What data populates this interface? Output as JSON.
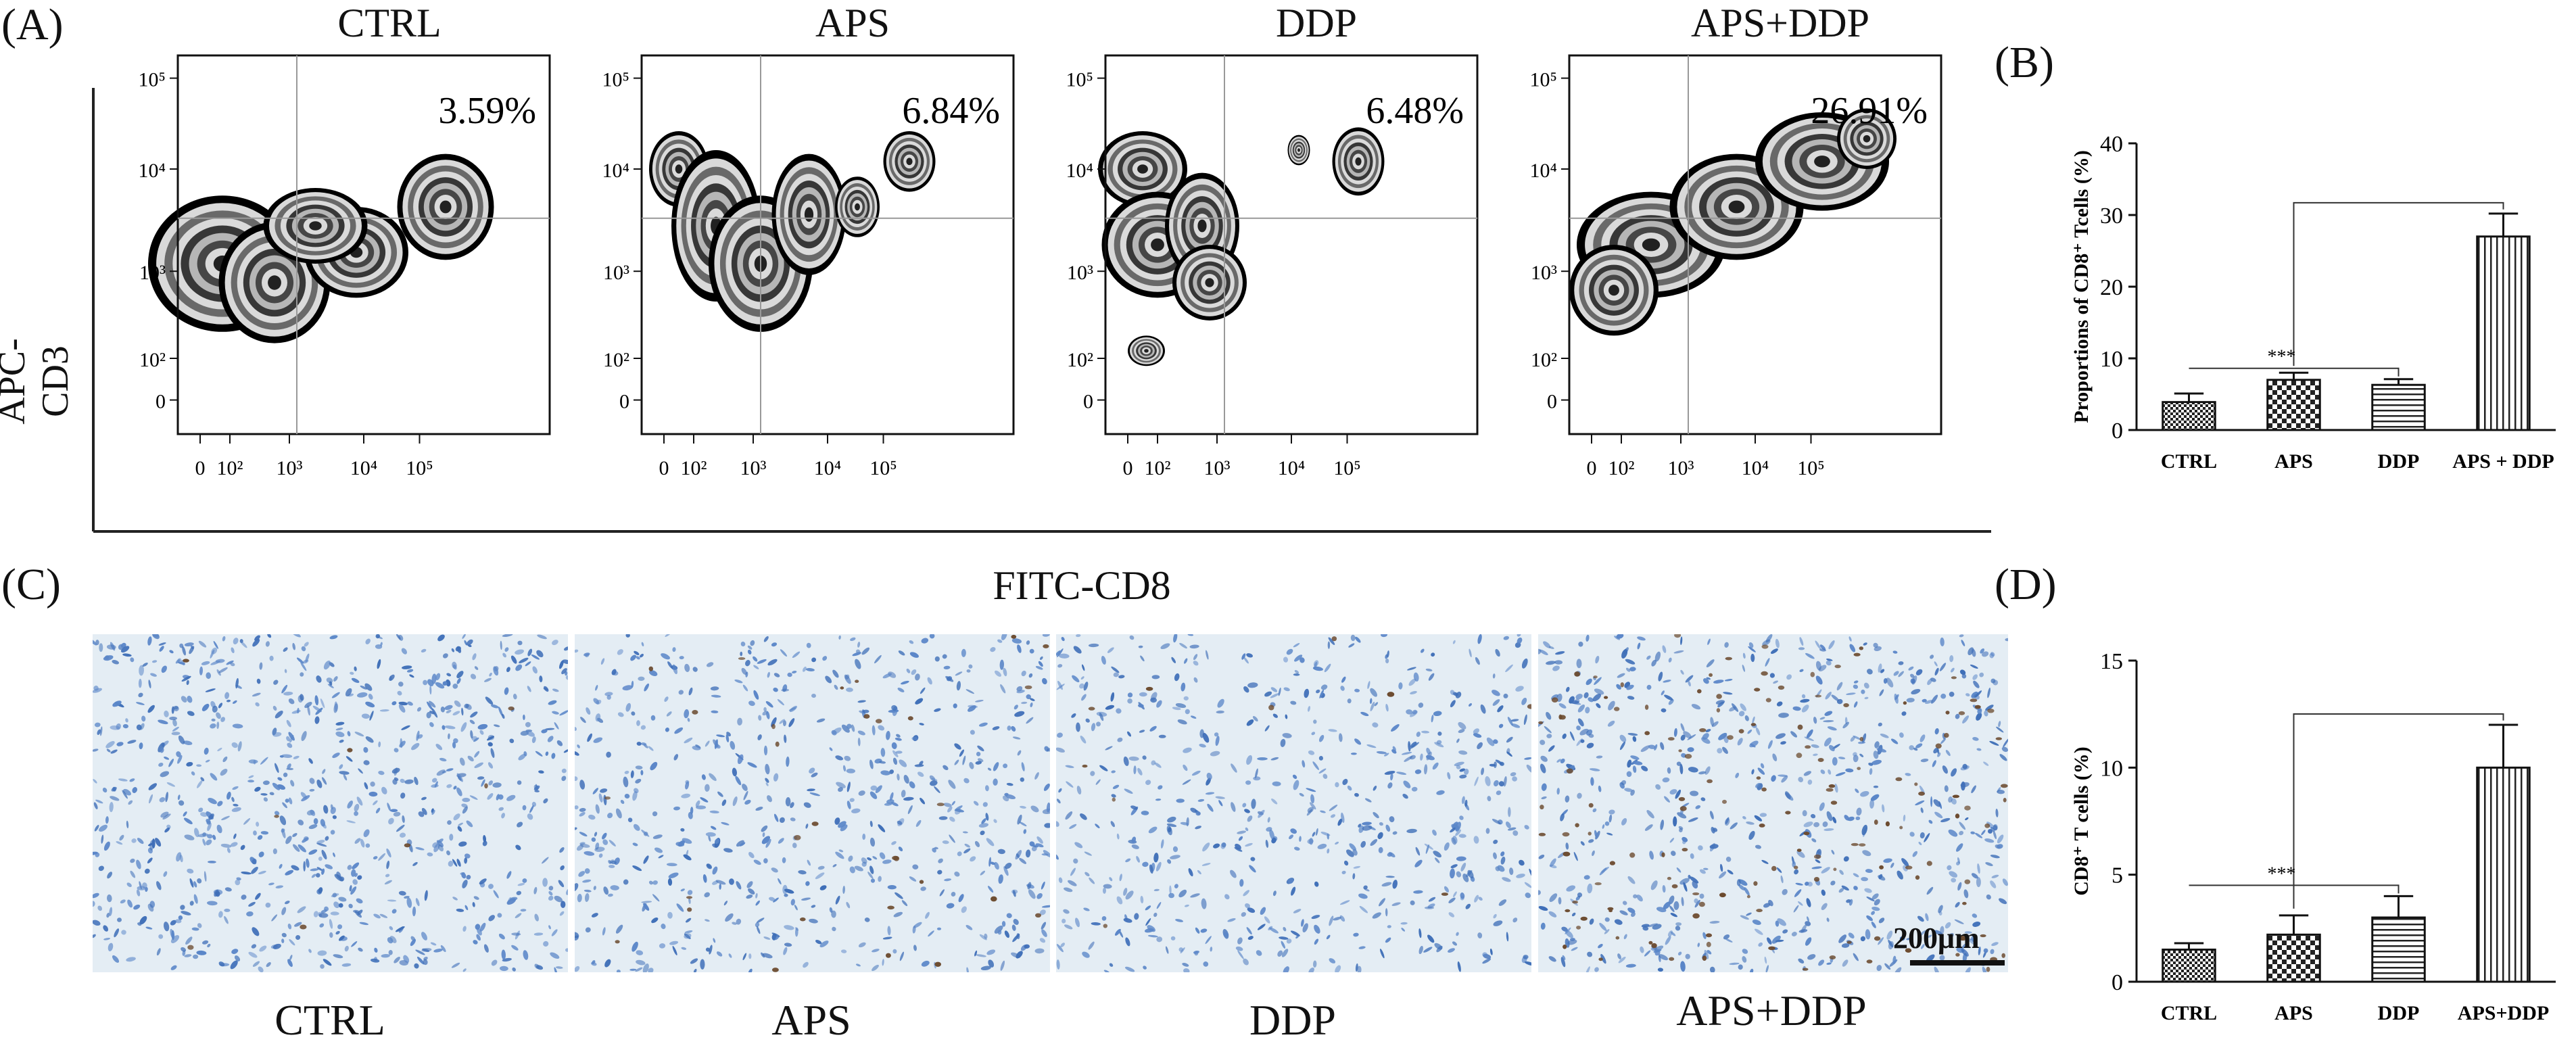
{
  "panels": {
    "a": "(A)",
    "b": "(B)",
    "c": "(C)",
    "d": "(D)"
  },
  "flow": {
    "ylabel": "APC-CD3",
    "y_ticks": [
      "10⁵",
      "10⁴",
      "10³",
      "10²",
      "0"
    ],
    "x_ticks": [
      "0",
      "10²",
      "10³",
      "10⁴",
      "10⁵"
    ],
    "plots": [
      {
        "title": "CTRL",
        "percent": "3.59%"
      },
      {
        "title": "APS",
        "percent": "6.84%"
      },
      {
        "title": "DDP",
        "percent": "6.48%"
      },
      {
        "title": "APS+DDP",
        "percent": "26.91%"
      }
    ]
  },
  "ihc": {
    "stain_label": "FITC-CD8",
    "scalebar": "200μm",
    "labels": [
      "CTRL",
      "APS",
      "DDP",
      "APS+DDP"
    ]
  },
  "colors": {
    "tissue_bg": "#e4edf4",
    "nuclei": "#3f6fb8",
    "positive_cells": "#6b4a2e"
  },
  "chart_data": [
    {
      "type": "bar",
      "panel": "B",
      "categories": [
        "CTRL",
        "APS",
        "DDP",
        "APS + DDP"
      ],
      "values": [
        3.9,
        7.0,
        6.3,
        27.0
      ],
      "errors": [
        1.2,
        1.0,
        0.8,
        3.2
      ],
      "ylabel": "Proportions of CD8⁺ Tcells (%)",
      "ylim": [
        0,
        40
      ],
      "yticks": [
        0,
        10,
        20,
        30,
        40
      ],
      "significance": "***",
      "patterns": [
        "checker-small",
        "checker-large",
        "horizontal",
        "vertical"
      ]
    },
    {
      "type": "bar",
      "panel": "D",
      "categories": [
        "CTRL",
        "APS",
        "DDP",
        "APS+DDP"
      ],
      "values": [
        1.5,
        2.2,
        3.0,
        10.0
      ],
      "errors": [
        0.3,
        0.9,
        1.0,
        2.0
      ],
      "ylabel": "CD8⁺ T cells (%)",
      "ylim": [
        0,
        15
      ],
      "yticks": [
        0,
        5,
        10,
        15
      ],
      "significance": "***",
      "patterns": [
        "checker-small",
        "checker-large",
        "horizontal",
        "vertical"
      ]
    }
  ]
}
